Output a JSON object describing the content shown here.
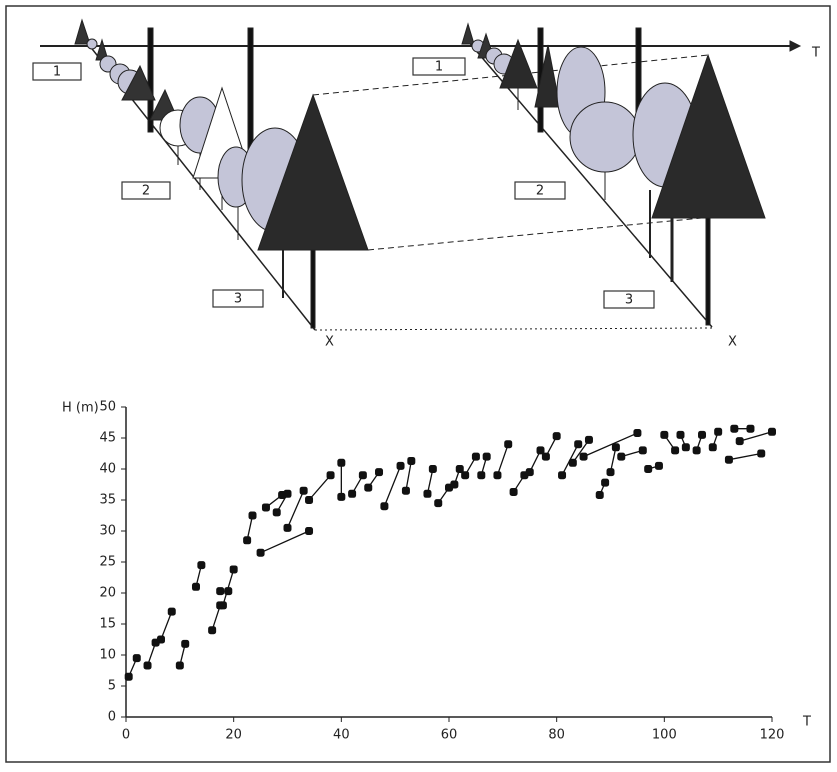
{
  "diagram": {
    "axis_label": "T",
    "x_labels": [
      "X",
      "X"
    ],
    "zones_left": [
      "1",
      "2",
      "3"
    ],
    "zones_right": [
      "1",
      "2",
      "3"
    ]
  },
  "chart_data": {
    "type": "line",
    "y_label": "H (m)",
    "x_label": "T",
    "xlim": [
      0,
      120
    ],
    "xticks": [
      0,
      20,
      40,
      60,
      80,
      100,
      120
    ],
    "ylim": [
      0,
      50
    ],
    "yticks": [
      0,
      5,
      10,
      15,
      20,
      25,
      30,
      35,
      40,
      45,
      50
    ],
    "markers": true,
    "series": [
      {
        "color": "#111111",
        "x": [
          0.5,
          2,
          null,
          4,
          5.5,
          null,
          6.5,
          8.5,
          null,
          10,
          11,
          null,
          13,
          14,
          null,
          16,
          17.5,
          null,
          18,
          20,
          null,
          17.5,
          19,
          null,
          22.5,
          23.5,
          null,
          25,
          34,
          null,
          26,
          29,
          null,
          28,
          30,
          null,
          30,
          33,
          null,
          34,
          38,
          null,
          40,
          40,
          null,
          42,
          44,
          null,
          45,
          47,
          null,
          48,
          51,
          null,
          52,
          53,
          null,
          56,
          57,
          null,
          58,
          60,
          null,
          61,
          62,
          null,
          63,
          65,
          null,
          66,
          67,
          null,
          69,
          71,
          null,
          72,
          74,
          null,
          75,
          77,
          null,
          78,
          80,
          null,
          81,
          84,
          null,
          83,
          86,
          null,
          85,
          95,
          null,
          88,
          89,
          null,
          90,
          91,
          null,
          92,
          96,
          null,
          97,
          99,
          null,
          100,
          102,
          null,
          103,
          104,
          null,
          106,
          107,
          null,
          109,
          110,
          null,
          112,
          118,
          null,
          113,
          116,
          null,
          114,
          120
        ],
        "values": [
          6.5,
          9.5,
          null,
          8.3,
          12,
          null,
          12.5,
          17,
          null,
          8.3,
          11.8,
          null,
          21,
          24.5,
          null,
          14,
          18,
          null,
          18,
          23.8,
          null,
          20.3,
          20.3,
          null,
          28.5,
          32.5,
          null,
          26.5,
          30,
          null,
          33.8,
          35.8,
          null,
          33,
          36,
          null,
          30.5,
          36.5,
          null,
          35,
          39,
          null,
          35.5,
          41,
          null,
          36,
          39,
          null,
          37,
          39.5,
          null,
          34,
          40.5,
          null,
          36.5,
          41.3,
          null,
          36,
          40,
          null,
          34.5,
          37,
          null,
          37.5,
          40,
          null,
          39,
          42,
          null,
          39,
          42,
          null,
          39,
          44,
          null,
          36.3,
          39,
          null,
          39.5,
          43,
          null,
          42,
          45.3,
          null,
          39,
          44,
          null,
          41,
          44.7,
          null,
          42,
          45.8,
          null,
          35.8,
          37.8,
          null,
          39.5,
          43.5,
          null,
          42,
          43,
          null,
          40,
          40.5,
          null,
          45.5,
          43,
          null,
          45.5,
          43.5,
          null,
          43,
          45.5,
          null,
          43.5,
          46,
          null,
          41.5,
          42.5,
          null,
          46.5,
          46.5,
          null,
          44.5,
          46
        ]
      }
    ]
  }
}
